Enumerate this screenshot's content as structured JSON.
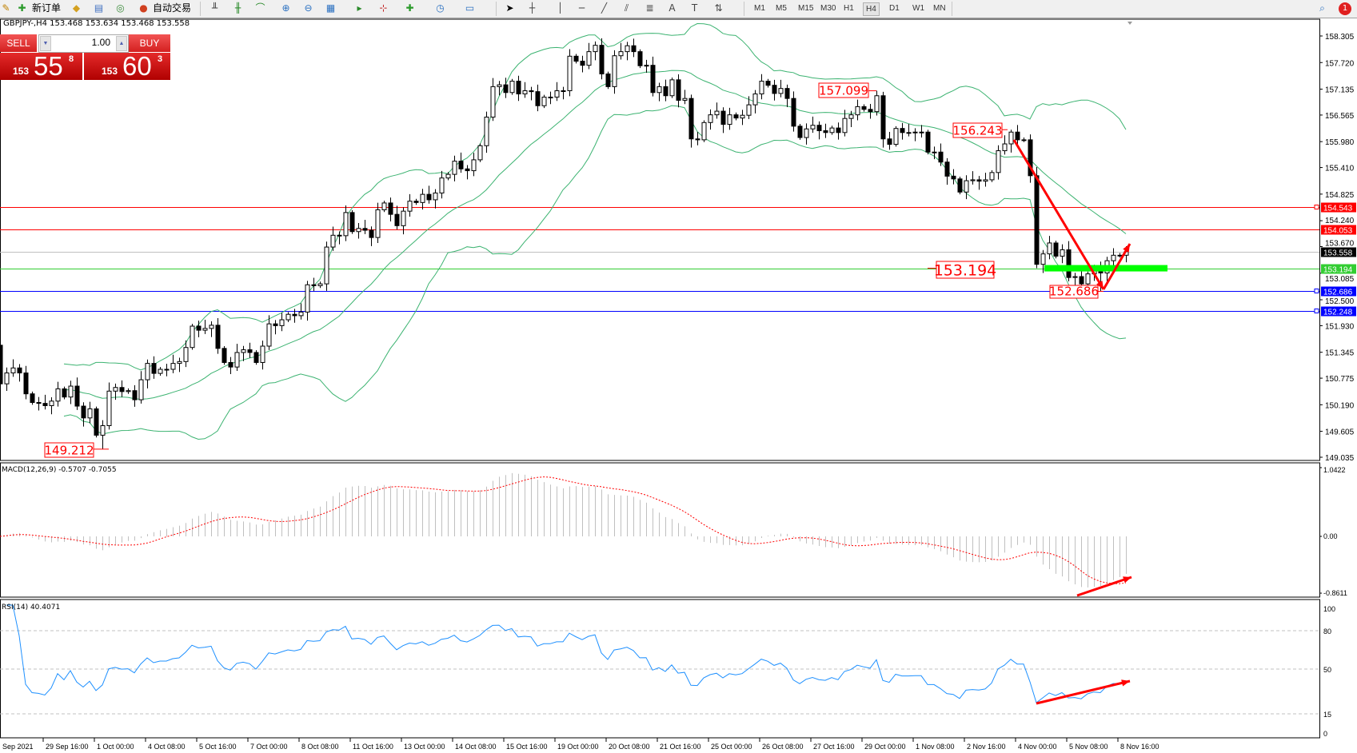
{
  "toolbar": {
    "new_order_label": "新订单",
    "auto_trading_label": "自动交易",
    "timeframes": [
      "M1",
      "M5",
      "M15",
      "M30",
      "H1",
      "H4",
      "D1",
      "W1",
      "MN"
    ],
    "active_timeframe": "H4",
    "notification_count": "1"
  },
  "symbol_header": "GBPJPY-,H4  153.468 153.634 153.468 153.558",
  "trade_panel": {
    "sell_label": "SELL",
    "buy_label": "BUY",
    "lot": "1.00",
    "sell_price": {
      "prefix": "153",
      "big": "55",
      "sup": "8"
    },
    "buy_price": {
      "prefix": "153",
      "big": "60",
      "sup": "3"
    }
  },
  "chart_data": {
    "type": "candlestick",
    "symbol": "GBPJPY-",
    "timeframe": "H4",
    "price_axis_ticks": [
      "158.305",
      "157.720",
      "157.135",
      "156.565",
      "155.980",
      "155.410",
      "154.825",
      "154.240",
      "153.670",
      "153.085",
      "152.500",
      "151.930",
      "151.345",
      "150.775",
      "150.190",
      "149.605",
      "149.035"
    ],
    "time_axis_labels": [
      "Sep 2021",
      "29 Sep 16:00",
      "1 Oct 00:00",
      "4 Oct 08:00",
      "5 Oct 16:00",
      "7 Oct 00:00",
      "8 Oct 08:00",
      "11 Oct 16:00",
      "13 Oct 00:00",
      "14 Oct 08:00",
      "15 Oct 16:00",
      "19 Oct 00:00",
      "20 Oct 08:00",
      "21 Oct 16:00",
      "25 Oct 00:00",
      "26 Oct 08:00",
      "27 Oct 16:00",
      "29 Oct 00:00",
      "1 Nov 08:00",
      "2 Nov 16:00",
      "4 Nov 00:00",
      "5 Nov 08:00",
      "8 Nov 16:00"
    ],
    "closes": [
      150.65,
      150.89,
      151.0,
      150.89,
      150.43,
      150.24,
      150.22,
      150.17,
      150.27,
      150.54,
      150.36,
      150.6,
      150.16,
      149.9,
      150.1,
      149.52,
      149.73,
      150.49,
      150.57,
      150.48,
      150.5,
      150.3,
      150.74,
      151.1,
      150.88,
      150.97,
      150.97,
      151.1,
      151.14,
      151.45,
      151.92,
      151.83,
      151.87,
      151.94,
      151.43,
      151.12,
      151.02,
      151.34,
      151.4,
      151.34,
      151.12,
      151.48,
      151.97,
      151.93,
      152.06,
      152.18,
      152.15,
      152.23,
      152.83,
      152.81,
      152.85,
      153.66,
      153.92,
      153.91,
      154.42,
      154.0,
      154.07,
      154.03,
      153.87,
      154.48,
      154.63,
      154.38,
      154.13,
      154.45,
      154.67,
      154.64,
      154.82,
      154.7,
      154.85,
      155.18,
      155.26,
      155.55,
      155.38,
      155.34,
      155.58,
      155.89,
      156.52,
      157.19,
      157.23,
      157.06,
      157.31,
      157.03,
      157.1,
      157.08,
      156.77,
      156.96,
      156.96,
      157.1,
      157.1,
      157.86,
      157.75,
      157.66,
      157.96,
      158.1,
      157.47,
      157.19,
      157.87,
      157.96,
      158.09,
      157.96,
      157.65,
      157.66,
      157.06,
      157.19,
      156.99,
      157.34,
      156.89,
      156.93,
      156.04,
      156.02,
      156.4,
      156.57,
      156.65,
      156.36,
      156.57,
      156.5,
      156.56,
      156.79,
      157.03,
      157.31,
      157.22,
      157.04,
      157.15,
      156.93,
      156.32,
      156.07,
      156.26,
      156.34,
      156.22,
      156.18,
      156.28,
      156.18,
      156.49,
      156.57,
      156.75,
      156.69,
      156.64,
      156.99,
      156.04,
      155.92,
      156.27,
      156.18,
      156.18,
      156.19,
      156.19,
      155.75,
      155.75,
      155.53,
      155.22,
      155.16,
      154.87,
      155.12,
      155.14,
      155.11,
      155.14,
      155.3,
      155.78,
      155.93,
      156.19,
      156.02,
      156.02,
      155.23,
      153.28,
      153.51,
      153.75,
      153.46,
      153.6,
      152.99,
      153.01,
      152.85,
      153.07,
      153.15,
      153.09,
      153.36,
      153.48,
      153.48,
      153.558
    ],
    "price_labels": [
      {
        "bar": 16,
        "price": 149.212,
        "text": "149.212",
        "kind": "low"
      },
      {
        "bar": 137,
        "price": 157.099,
        "text": "157.099",
        "kind": "high"
      },
      {
        "bar": 158,
        "price": 156.243,
        "text": "156.243",
        "kind": "high"
      },
      {
        "bar": 172,
        "price": 152.686,
        "text": "152.686",
        "kind": "low"
      }
    ],
    "level_annotation": {
      "price": 153.194,
      "text": "153.194"
    },
    "horizontal_levels": [
      {
        "price": 154.543,
        "label": "154.543",
        "color": "#ff0000",
        "marker": true
      },
      {
        "price": 154.053,
        "label": "154.053",
        "color": "#ff0000",
        "marker": false
      },
      {
        "price": 153.558,
        "label": "153.558",
        "color": "#c0c0c0",
        "label_bg": "#000000",
        "marker": false
      },
      {
        "price": 153.194,
        "label": "153.194",
        "color": "#32cd32",
        "marker": false
      },
      {
        "price": 152.686,
        "label": "152.686",
        "color": "#0000ff",
        "marker": true
      },
      {
        "price": 152.248,
        "label": "152.248",
        "color": "#0000ff",
        "marker": true
      }
    ],
    "bollinger": {
      "period": 20,
      "deviation": 2,
      "color": "#3cb371"
    },
    "support_zone": {
      "price": 153.194,
      "color": "#00ff00"
    },
    "macd": {
      "title": "MACD(12,26,9) -0.5707 -0.7055",
      "fast": 12,
      "slow": 26,
      "signal": 9,
      "axis_labels": [
        "1.0422",
        "0.00",
        "-0.8611"
      ],
      "max": 1.0422,
      "min": -0.8611,
      "signal_color": "#ff0000",
      "hist_color": "#c0c0c0"
    },
    "rsi": {
      "title": "RSI(14) 40.4071",
      "period": 14,
      "axis_labels": [
        "100",
        "80",
        "50",
        "15",
        "0"
      ],
      "levels": [
        80,
        50,
        15
      ],
      "color": "#1e90ff"
    },
    "arrow_color": "#ff0000"
  }
}
